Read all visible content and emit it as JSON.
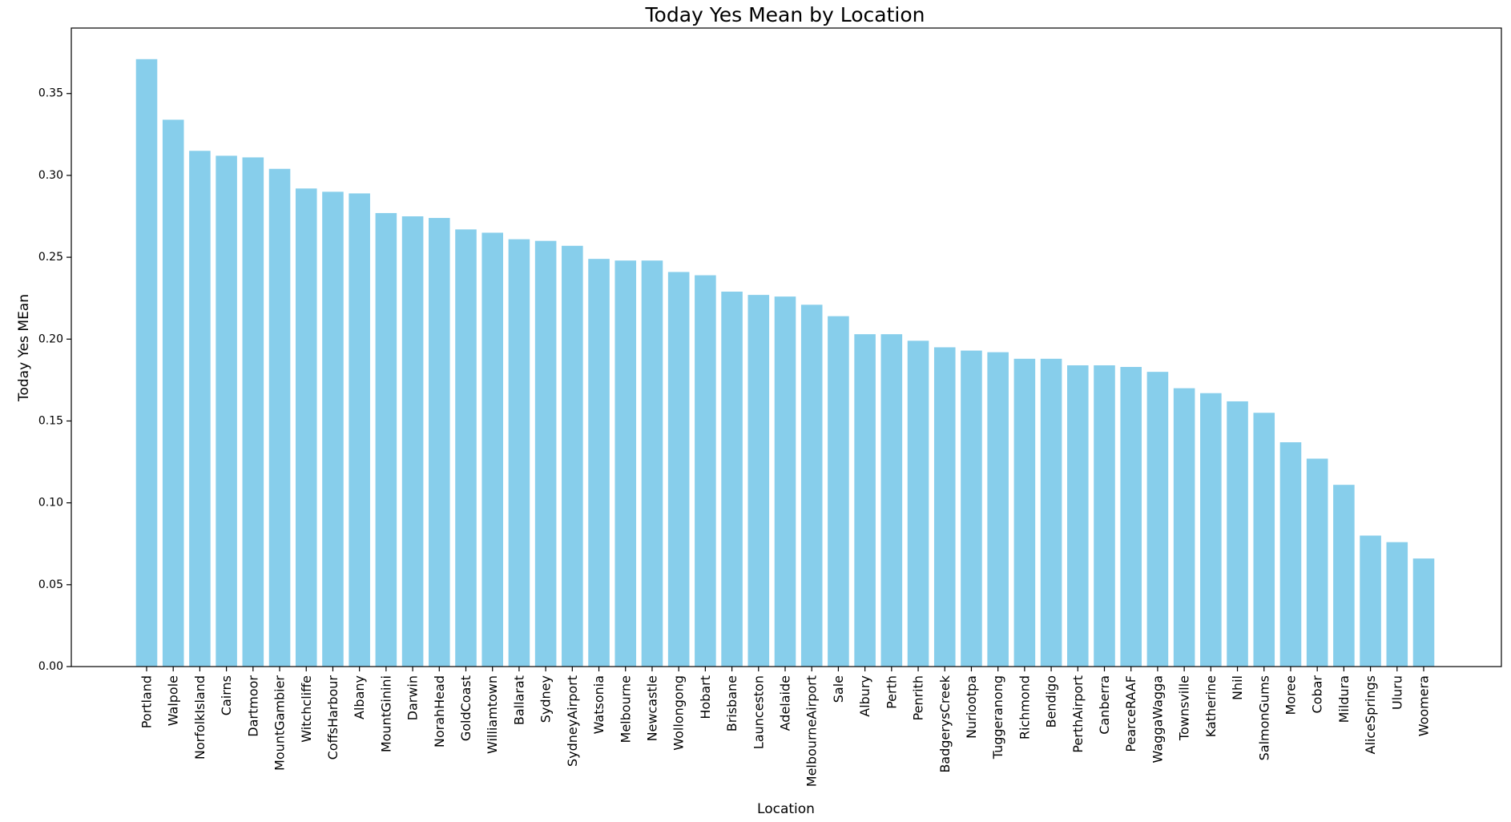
{
  "chart_data": {
    "type": "bar",
    "title": "Today Yes Mean by Location",
    "xlabel": "Location",
    "ylabel": "Today Yes MEan",
    "ylim": [
      0,
      0.39
    ],
    "yticks": [
      "0.00",
      "0.05",
      "0.10",
      "0.15",
      "0.20",
      "0.25",
      "0.30",
      "0.35"
    ],
    "grid": false,
    "legend": "none",
    "bar_color": "#87ceeb",
    "categories": [
      "Portland",
      "Walpole",
      "NorfolkIsland",
      "Cairns",
      "Dartmoor",
      "MountGambier",
      "Witchcliffe",
      "CoffsHarbour",
      "Albany",
      "MountGinini",
      "Darwin",
      "NorahHead",
      "GoldCoast",
      "Williamtown",
      "Ballarat",
      "Sydney",
      "SydneyAirport",
      "Watsonia",
      "Melbourne",
      "Newcastle",
      "Wollongong",
      "Hobart",
      "Brisbane",
      "Launceston",
      "Adelaide",
      "MelbourneAirport",
      "Sale",
      "Albury",
      "Perth",
      "Penrith",
      "BadgerysCreek",
      "Nuriootpa",
      "Tuggeranong",
      "Richmond",
      "Bendigo",
      "PerthAirport",
      "Canberra",
      "PearceRAAF",
      "WaggaWagga",
      "Townsville",
      "Katherine",
      "Nhil",
      "SalmonGums",
      "Moree",
      "Cobar",
      "Mildura",
      "AliceSprings",
      "Uluru",
      "Woomera"
    ],
    "values": [
      0.371,
      0.334,
      0.315,
      0.312,
      0.311,
      0.304,
      0.292,
      0.29,
      0.289,
      0.277,
      0.275,
      0.274,
      0.267,
      0.265,
      0.261,
      0.26,
      0.257,
      0.249,
      0.248,
      0.248,
      0.241,
      0.239,
      0.229,
      0.227,
      0.226,
      0.221,
      0.214,
      0.203,
      0.203,
      0.199,
      0.195,
      0.193,
      0.192,
      0.188,
      0.188,
      0.184,
      0.184,
      0.183,
      0.18,
      0.17,
      0.167,
      0.162,
      0.155,
      0.137,
      0.127,
      0.111,
      0.08,
      0.076,
      0.066
    ]
  }
}
